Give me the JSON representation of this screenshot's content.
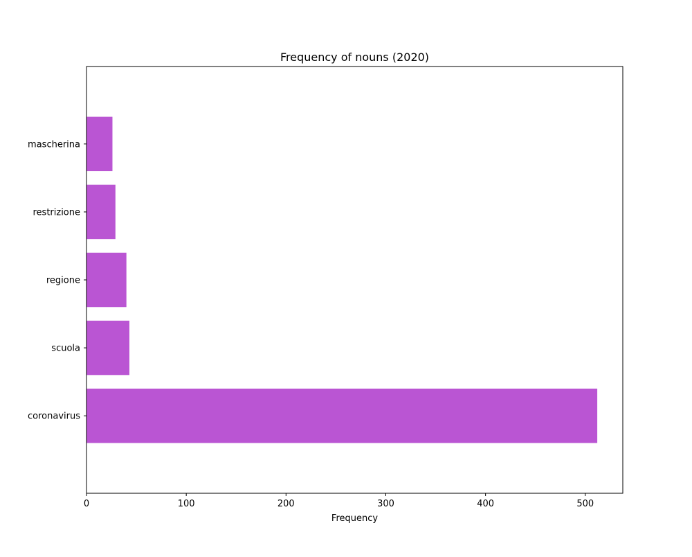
{
  "chart_data": {
    "type": "bar",
    "orientation": "horizontal",
    "title": "Frequency of nouns (2020)",
    "xlabel": "Frequency",
    "ylabel": "",
    "categories": [
      "coronavirus",
      "scuola",
      "regione",
      "restrizione",
      "mascherina"
    ],
    "values": [
      512,
      43,
      40,
      29,
      26
    ],
    "xlim": [
      0,
      537.6
    ],
    "x_ticks": [
      0,
      100,
      200,
      300,
      400,
      500
    ],
    "bar_color": "#ba55d3",
    "grid": false,
    "legend": "none"
  }
}
